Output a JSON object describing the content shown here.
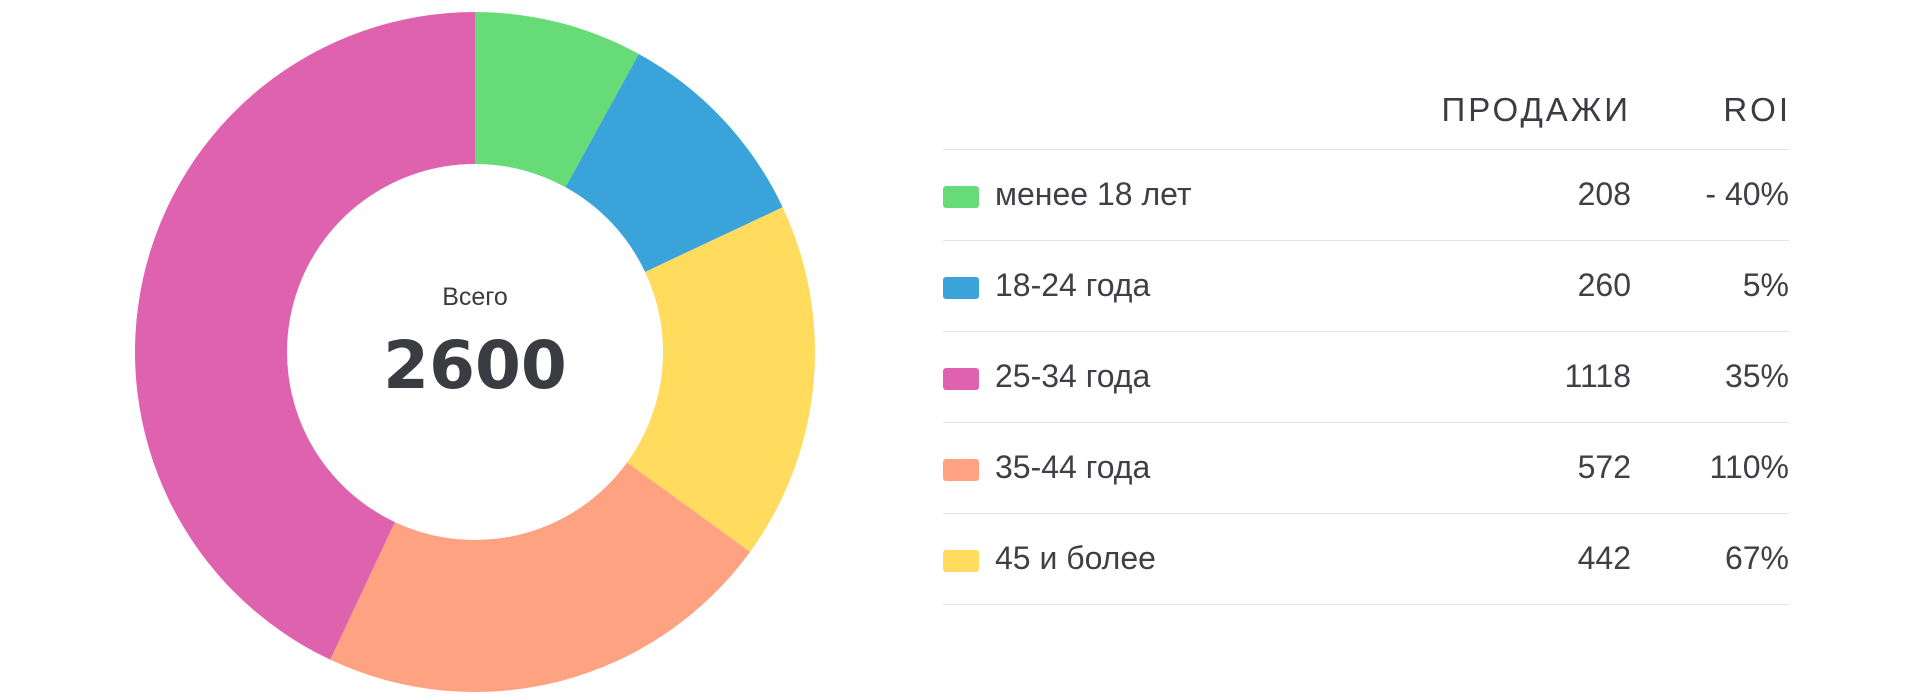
{
  "chart_data": {
    "type": "pie",
    "variant": "donut",
    "categories": [
      "менее 18 лет",
      "18-24 года",
      "25-34 года",
      "35-44 года",
      "45 и более"
    ],
    "values": [
      208,
      260,
      1118,
      572,
      442
    ],
    "order_clockwise_from_top": [
      "менее 18 лет",
      "18-24 года",
      "45 и более",
      "35-44 года",
      "25-34 года"
    ],
    "colors": {
      "менее 18 лет": "#67db78",
      "18-24 года": "#3aa3d9",
      "25-34 года": "#de62ae",
      "35-44 года": "#ffa282",
      "45 и более": "#ffdb5e"
    },
    "center": {
      "label": "Всего",
      "total": "2600"
    }
  },
  "table": {
    "headers": {
      "sales": "ПРОДАЖИ",
      "roi": "ROI"
    },
    "rows": [
      {
        "label": "менее 18 лет",
        "sales": "208",
        "roi": "- 40%",
        "color": "#67db78"
      },
      {
        "label": "18-24 года",
        "sales": "260",
        "roi": "5%",
        "color": "#3aa3d9"
      },
      {
        "label": "25-34 года",
        "sales": "1118",
        "roi": "35%",
        "color": "#de62ae"
      },
      {
        "label": "35-44 года",
        "sales": "572",
        "roi": "110%",
        "color": "#ffa282"
      },
      {
        "label": "45 и более",
        "sales": "442",
        "roi": "67%",
        "color": "#ffdb5e"
      }
    ]
  }
}
